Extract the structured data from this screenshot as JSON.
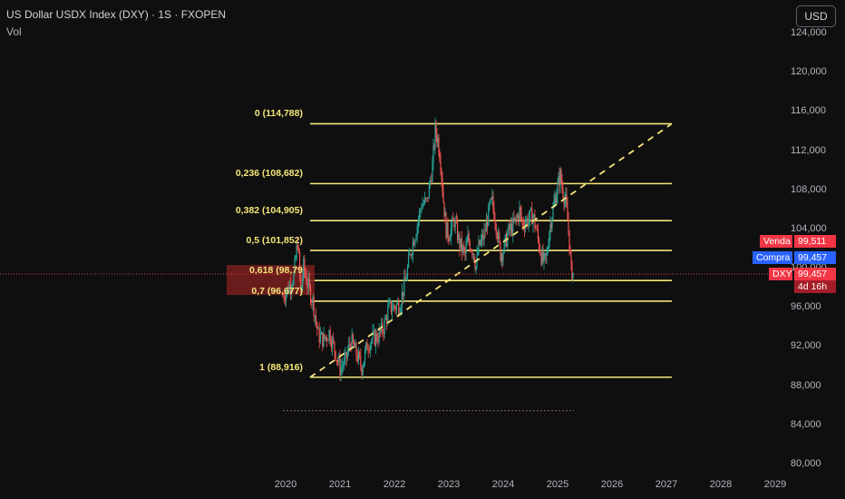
{
  "header": {
    "title": "US Dollar USDX Index (DXY) · 1S · FXOPEN",
    "vol_label": "Vol"
  },
  "currency_button": "USD",
  "price_tags": {
    "sell": {
      "label": "Venda",
      "value": "99,511",
      "color": "#f23645"
    },
    "buy": {
      "label": "Compra",
      "value": "99,457",
      "color": "#2962ff"
    },
    "last": {
      "label": "DXY",
      "value": "99,457",
      "countdown": "4d 16h",
      "color": "#f23645"
    }
  },
  "chart_data": {
    "type": "candlestick",
    "symbol": "DXY",
    "y_axis": {
      "ticks": [
        "124,000",
        "120,000",
        "116,000",
        "112,000",
        "108,000",
        "104,000",
        "100,000",
        "96,000",
        "92,000",
        "88,000",
        "84,000",
        "80,000"
      ],
      "range": [
        80,
        124
      ]
    },
    "x_axis": {
      "ticks": [
        "2020",
        "2021",
        "2022",
        "2023",
        "2024",
        "2025",
        "2026",
        "2027",
        "2028",
        "2029"
      ],
      "range": [
        2019.55,
        2029.45
      ]
    },
    "fibonacci": {
      "color": "#f5e67a",
      "levels": [
        {
          "label": "0 (114,788)",
          "ratio": 0,
          "price": 114.788
        },
        {
          "label": "0,236 (108,682)",
          "ratio": 0.236,
          "price": 108.682
        },
        {
          "label": "0,382 (104,905)",
          "ratio": 0.382,
          "price": 104.905
        },
        {
          "label": "0,5 (101,852)",
          "ratio": 0.5,
          "price": 101.852
        },
        {
          "label": "0,618 (98,79",
          "ratio": 0.618,
          "price": 98.79,
          "highlighted": true
        },
        {
          "label": "0,7 (96,677)",
          "ratio": 0.7,
          "price": 96.677
        },
        {
          "label": "1 (88,916)",
          "ratio": 1,
          "price": 88.916
        }
      ],
      "x_start": 2020.45,
      "x_end": 2027.1
    },
    "trendline": {
      "from": [
        2020.45,
        88.9
      ],
      "to": [
        2027.1,
        114.8
      ],
      "style": "dashed",
      "color": "#f5e67a"
    },
    "price_line": {
      "value": 99.457,
      "color": "#f23645",
      "style": "dotted"
    },
    "base_line": {
      "value": 85.5,
      "from": 2019.95,
      "to": 2025.3
    },
    "ohlc_path": [
      [
        2019.95,
        97.2
      ],
      [
        2020.05,
        98.0
      ],
      [
        2020.15,
        99.2
      ],
      [
        2020.22,
        102.8
      ],
      [
        2020.28,
        97.4
      ],
      [
        2020.33,
        100.2
      ],
      [
        2020.4,
        98.5
      ],
      [
        2020.5,
        96.7
      ],
      [
        2020.6,
        93.2
      ],
      [
        2020.7,
        92.7
      ],
      [
        2020.8,
        93.5
      ],
      [
        2020.9,
        91.8
      ],
      [
        2021.0,
        89.8
      ],
      [
        2021.1,
        90.6
      ],
      [
        2021.2,
        92.7
      ],
      [
        2021.3,
        91.3
      ],
      [
        2021.4,
        89.9
      ],
      [
        2021.5,
        92.2
      ],
      [
        2021.6,
        92.8
      ],
      [
        2021.7,
        93.1
      ],
      [
        2021.8,
        94.0
      ],
      [
        2021.9,
        96.0
      ],
      [
        2022.0,
        96.1
      ],
      [
        2022.1,
        96.4
      ],
      [
        2022.2,
        98.7
      ],
      [
        2022.3,
        101.8
      ],
      [
        2022.4,
        104.0
      ],
      [
        2022.5,
        106.6
      ],
      [
        2022.6,
        106.8
      ],
      [
        2022.7,
        110.5
      ],
      [
        2022.75,
        114.1
      ],
      [
        2022.8,
        113.2
      ],
      [
        2022.85,
        111.0
      ],
      [
        2022.9,
        107.0
      ],
      [
        2022.95,
        104.0
      ],
      [
        2023.0,
        103.5
      ],
      [
        2023.1,
        104.9
      ],
      [
        2023.2,
        102.5
      ],
      [
        2023.3,
        101.4
      ],
      [
        2023.35,
        103.0
      ],
      [
        2023.45,
        101.8
      ],
      [
        2023.5,
        100.2
      ],
      [
        2023.55,
        102.2
      ],
      [
        2023.65,
        103.4
      ],
      [
        2023.75,
        106.2
      ],
      [
        2023.8,
        106.8
      ],
      [
        2023.85,
        105.2
      ],
      [
        2023.95,
        101.5
      ],
      [
        2024.0,
        101.9
      ],
      [
        2024.1,
        103.8
      ],
      [
        2024.2,
        104.5
      ],
      [
        2024.3,
        105.9
      ],
      [
        2024.35,
        104.6
      ],
      [
        2024.45,
        105.0
      ],
      [
        2024.55,
        105.5
      ],
      [
        2024.6,
        104.1
      ],
      [
        2024.7,
        101.3
      ],
      [
        2024.75,
        100.6
      ],
      [
        2024.8,
        101.2
      ],
      [
        2024.85,
        104.0
      ],
      [
        2024.9,
        105.6
      ],
      [
        2024.95,
        107.0
      ],
      [
        2025.0,
        108.4
      ],
      [
        2025.05,
        109.5
      ],
      [
        2025.1,
        107.8
      ],
      [
        2025.15,
        106.8
      ],
      [
        2025.2,
        104.0
      ],
      [
        2025.25,
        99.8
      ],
      [
        2025.3,
        99.457
      ]
    ]
  }
}
